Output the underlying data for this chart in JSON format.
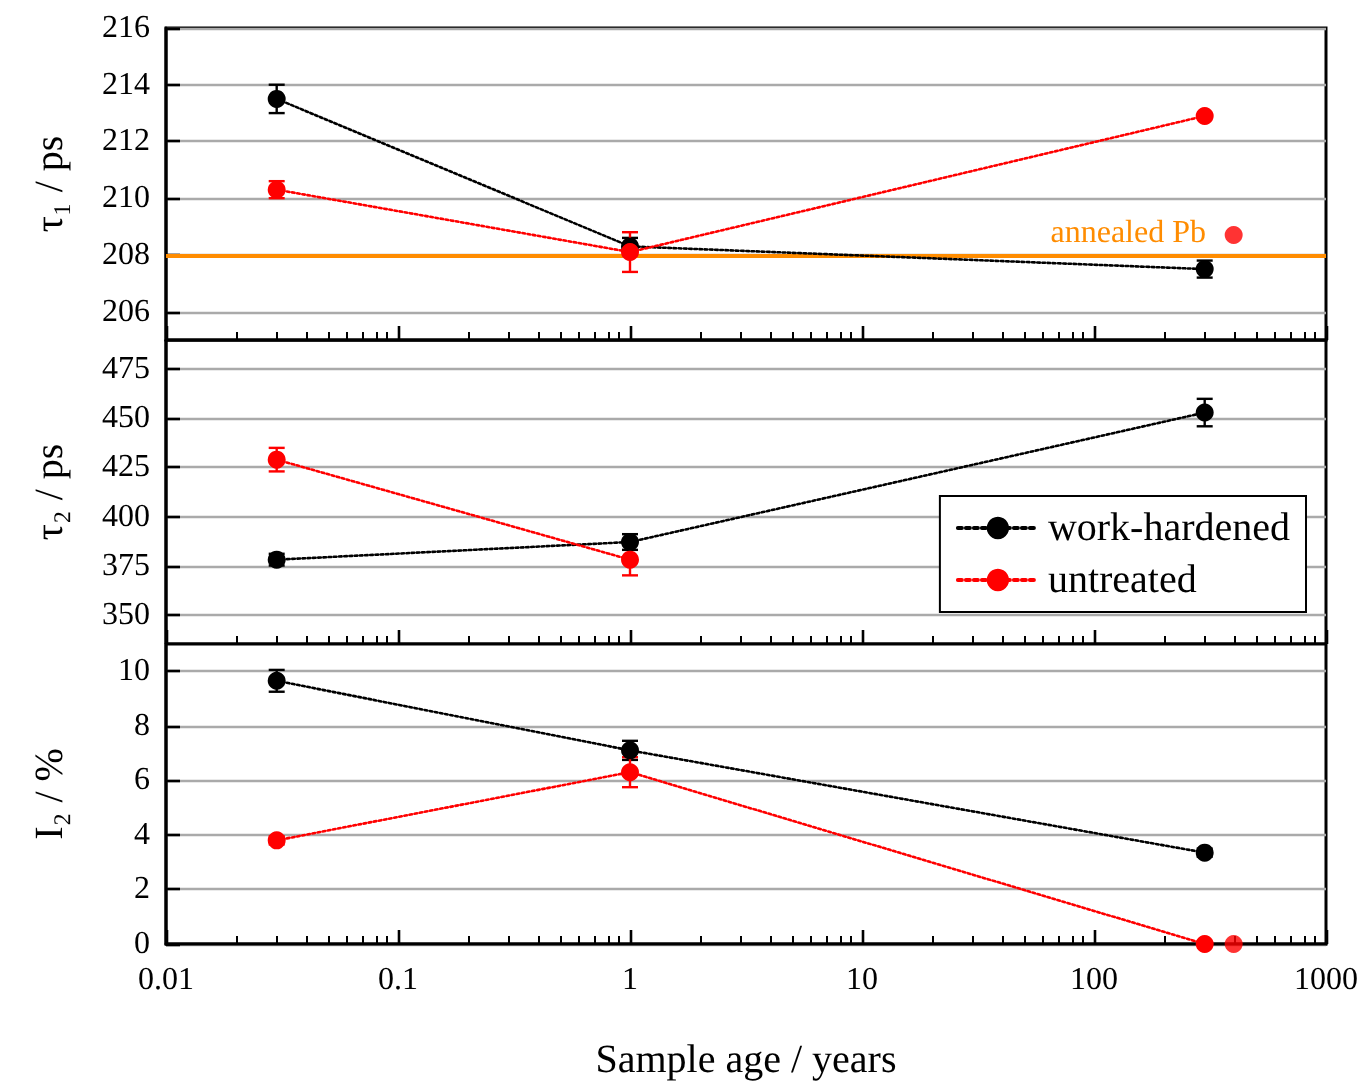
{
  "chart_data": [
    {
      "type": "line",
      "ylabel": "τ₁ / ps",
      "xlim": [
        0.01,
        1000
      ],
      "xticks": [
        0.01,
        0.1,
        1,
        10,
        100,
        1000
      ],
      "ylim": [
        205,
        216
      ],
      "yticks": [
        206,
        208,
        210,
        212,
        214,
        216
      ],
      "log": "x",
      "grid": "y",
      "tick_labels": "y",
      "marker": "circle",
      "line_style": "dotted",
      "series": [
        {
          "color": "#000000",
          "x": [
            0.03,
            1,
            300
          ],
          "values": [
            213.5,
            208.3,
            207.5
          ],
          "errors": [
            0.5,
            0.3,
            0.3
          ]
        },
        {
          "color": "#ff0000",
          "x": [
            0.03,
            1,
            300
          ],
          "values": [
            210.3,
            208.1,
            212.9
          ],
          "errors": [
            0.3,
            0.7,
            null
          ]
        },
        {
          "type": "scatter",
          "color": "#ff0000",
          "x": [
            400
          ],
          "values": [
            208.7
          ]
        }
      ],
      "ref_lines": [
        {
          "axis": "y",
          "value": 208,
          "label": "annealed Pb",
          "color": "#ff8c00"
        }
      ]
    },
    {
      "type": "line",
      "ylabel": "τ₂ / ps",
      "xlim": [
        0.01,
        1000
      ],
      "xticks": [
        0.01,
        0.1,
        1,
        10,
        100,
        1000
      ],
      "ylim": [
        335,
        490
      ],
      "yticks": [
        350,
        375,
        400,
        425,
        450,
        475
      ],
      "log": "x",
      "grid": "y",
      "tick_labels": "y",
      "marker": "circle",
      "line_style": "dotted",
      "legend": "bottom right",
      "series": [
        {
          "name": "work-hardened",
          "color": "#000000",
          "x": [
            0.03,
            1,
            300
          ],
          "values": [
            378,
            387,
            453
          ],
          "errors": [
            3,
            4,
            7
          ]
        },
        {
          "name": "untreated",
          "color": "#ff0000",
          "x": [
            0.03,
            1
          ],
          "values": [
            429,
            378
          ],
          "errors": [
            6,
            8
          ]
        }
      ]
    },
    {
      "type": "line",
      "xlabel": "Sample age / years",
      "ylabel": "I₂ / %",
      "xlim": [
        0.01,
        1000
      ],
      "xticks": [
        0.01,
        0.1,
        1,
        10,
        100,
        1000
      ],
      "ylim": [
        0,
        11
      ],
      "yticks": [
        0,
        2,
        4,
        6,
        8,
        10
      ],
      "log": "x",
      "grid": "y",
      "marker": "circle",
      "line_style": "dotted",
      "series": [
        {
          "color": "#000000",
          "x": [
            0.03,
            1,
            300
          ],
          "values": [
            9.65,
            7.1,
            3.35
          ],
          "errors": [
            0.4,
            0.35,
            0.15
          ]
        },
        {
          "color": "#ff0000",
          "x": [
            0.03,
            1,
            300
          ],
          "values": [
            3.8,
            6.3,
            0
          ],
          "errors": [
            0.15,
            0.55,
            null
          ]
        },
        {
          "type": "scatter",
          "color": "#ff0000",
          "x": [
            400
          ],
          "values": [
            0
          ]
        }
      ]
    }
  ]
}
